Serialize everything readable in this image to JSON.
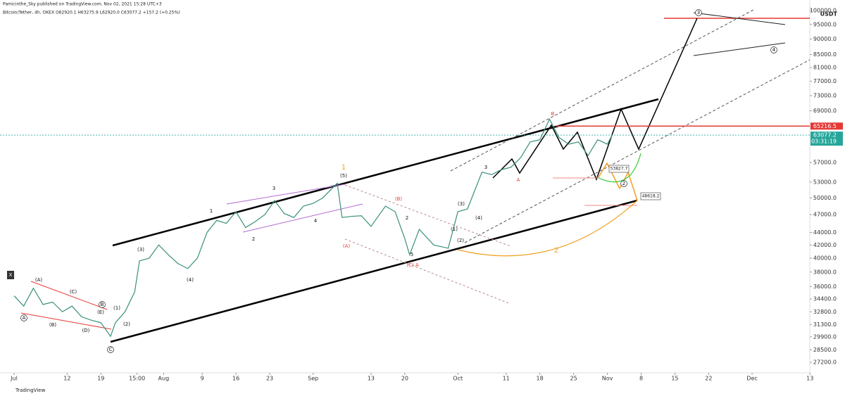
{
  "header": {
    "publisher": "Pamicinthe_Sky published on TradingView.com, Nov 02, 2021 15:28 UTC+3",
    "symbol": "Bitcoin/Tether, 4h, OKEX  O62920.1  H63275.9  L62920.0  C63077.2  +157.2 (+0.25%)",
    "footer": "TradingView"
  },
  "chart_data": {
    "type": "line",
    "color": "#3a8f7c",
    "log_scale": true,
    "currency": "USDT",
    "x": [
      0,
      2,
      4,
      6,
      8,
      10,
      12,
      14,
      16,
      18,
      20,
      21,
      23,
      25,
      26,
      28,
      30,
      32,
      34,
      36,
      38,
      40,
      42,
      44,
      46,
      48,
      50,
      52,
      54,
      56,
      58,
      60,
      62,
      64,
      67,
      68,
      70,
      72,
      74,
      77,
      79,
      81,
      82,
      84,
      87,
      90,
      92,
      94,
      97,
      99,
      101,
      103,
      105,
      107,
      109,
      111,
      113,
      115,
      117,
      119,
      121,
      123,
      124
    ],
    "series": [
      {
        "name": "Bitcoin/Tether",
        "color": "#3a8f7c",
        "values": [
          34800,
          33500,
          35800,
          33700,
          34000,
          32800,
          33500,
          32200,
          31800,
          31500,
          29950,
          31500,
          32800,
          35300,
          39600,
          40000,
          42000,
          40500,
          39200,
          38500,
          40000,
          44000,
          46000,
          45500,
          47500,
          44800,
          45800,
          47000,
          49500,
          47200,
          46500,
          48500,
          49000,
          50000,
          52800,
          46500,
          46700,
          46800,
          45000,
          48500,
          47500,
          43000,
          40500,
          44500,
          42000,
          41500,
          47500,
          48000,
          55000,
          54500,
          55500,
          56000,
          58000,
          61500,
          62000,
          66900,
          62500,
          61000,
          61500,
          58500,
          62000,
          61000,
          63077.2
        ]
      }
    ],
    "xlim": [
      -3,
      164
    ],
    "xticks": [
      {
        "value": 0,
        "label": "Jul"
      },
      {
        "value": 11,
        "label": "12"
      },
      {
        "value": 18,
        "label": "19"
      },
      {
        "value": 25.5,
        "label": "15:00"
      },
      {
        "value": 31,
        "label": "Aug"
      },
      {
        "value": 39,
        "label": "9"
      },
      {
        "value": 46,
        "label": "16"
      },
      {
        "value": 53,
        "label": "23"
      },
      {
        "value": 62,
        "label": "Sep"
      },
      {
        "value": 74,
        "label": "13"
      },
      {
        "value": 81,
        "label": "20"
      },
      {
        "value": 92,
        "label": "Oct"
      },
      {
        "value": 102,
        "label": "11"
      },
      {
        "value": 109,
        "label": "18"
      },
      {
        "value": 116,
        "label": "25"
      },
      {
        "value": 123,
        "label": "Nov"
      },
      {
        "value": 130,
        "label": "8"
      },
      {
        "value": 137,
        "label": "15"
      },
      {
        "value": 144,
        "label": "22"
      },
      {
        "value": 153,
        "label": "Dec"
      },
      {
        "value": 165,
        "label": "13"
      }
    ],
    "ylim": [
      25500,
      104000
    ],
    "yticks": [
      {
        "value": 100000,
        "label": "100000.0"
      },
      {
        "value": 95000,
        "label": "95000.0"
      },
      {
        "value": 90000,
        "label": "90000.0"
      },
      {
        "value": 85000,
        "label": "85000.0"
      },
      {
        "value": 81000,
        "label": "81000.0"
      },
      {
        "value": 77000,
        "label": "77000.0"
      },
      {
        "value": 73000,
        "label": "73000.0"
      },
      {
        "value": 69000,
        "label": "69000.0"
      },
      {
        "value": 57000,
        "label": "57000.0"
      },
      {
        "value": 53000,
        "label": "53000.0"
      },
      {
        "value": 50000,
        "label": "50000.0"
      },
      {
        "value": 47000,
        "label": "47000.0"
      },
      {
        "value": 44000,
        "label": "44000.0"
      },
      {
        "value": 42000,
        "label": "42000.0"
      },
      {
        "value": 40000,
        "label": "40000.0"
      },
      {
        "value": 38000,
        "label": "38000.0"
      },
      {
        "value": 36000,
        "label": "36000.0"
      },
      {
        "value": 34400,
        "label": "34400.0"
      },
      {
        "value": 32800,
        "label": "32800.0"
      },
      {
        "value": 31300,
        "label": "31300.0"
      },
      {
        "value": 29900,
        "label": "29900.0"
      },
      {
        "value": 28500,
        "label": "28500.0"
      },
      {
        "value": 27200,
        "label": "27200.0"
      }
    ],
    "price_lines": [
      {
        "value": 65216.5,
        "color": "#e53935"
      },
      {
        "value": 63077.2,
        "color": "#26a69a",
        "countdown": "03:31:19"
      }
    ],
    "tooltips": [
      "53827.7",
      "48618.2"
    ],
    "annotations": [
      "1",
      "(5)",
      "3",
      "1",
      "2",
      "4",
      "(3)",
      "(4)",
      "(1)",
      "(2)",
      "(A)",
      "(B)",
      "(C)",
      "(D)",
      "(E)",
      "A",
      "B",
      "C",
      "3",
      "4",
      "2",
      "(A)",
      "(B)",
      "2",
      "X",
      "B",
      "A",
      "(1)",
      "(2)",
      "(3)",
      "(4)",
      "3",
      "5",
      "(C) A",
      "2"
    ]
  }
}
